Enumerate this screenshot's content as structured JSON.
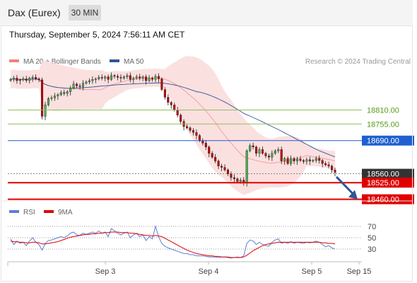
{
  "header": {
    "title": "Dax (Eurex)",
    "timeframe": "30 MIN"
  },
  "datetime": "Thursday, September 5, 2024 7:56:11 AM CET",
  "colors": {
    "bollinger": "#f08080",
    "ma50": "#2f5597",
    "resistance": "#8fbf5a",
    "pivot": "#1f5fd0",
    "support": "#e00000",
    "current_price": "#333333",
    "rsi": "#5b7fd6",
    "rsi_ma": "#e00000",
    "candle_up": "#4caf50",
    "candle_down": "#c00000",
    "arrow": "#2f5597"
  },
  "chart_data": [
    {
      "type": "candlestick",
      "title": "",
      "legend": [
        {
          "label": "MA 20 + Bollinger Bands",
          "color": "#f08080"
        },
        {
          "label": "MA 50",
          "color": "#2f5597"
        }
      ],
      "legend_position": "top-left",
      "attribution": "Research © 2024 Trading Central",
      "x_tick_labels": [
        "Sep 3",
        "Sep 4",
        "Sep 5",
        "Sep 15"
      ],
      "ylim": [
        18400,
        19000
      ],
      "close_series": [
        18930,
        18935,
        18925,
        18928,
        18932,
        18926,
        18935,
        18938,
        18932,
        18928,
        18785,
        18830,
        18855,
        18858,
        18865,
        18870,
        18878,
        18875,
        18882,
        18896,
        18912,
        18905,
        18902,
        18915,
        18920,
        18925,
        18930,
        18932,
        18938,
        18935,
        18940,
        18930,
        18945,
        18942,
        18938,
        18935,
        18940,
        18945,
        18930,
        18935,
        18940,
        18935,
        18940,
        18925,
        18935,
        18930,
        18942,
        18932,
        18890,
        18860,
        18840,
        18830,
        18810,
        18790,
        18765,
        18745,
        18740,
        18730,
        18722,
        18710,
        18690,
        18680,
        18665,
        18640,
        18625,
        18610,
        18590,
        18585,
        18575,
        18560,
        18545,
        18540,
        18530,
        18535,
        18525,
        18650,
        18670,
        18665,
        18640,
        18655,
        18640,
        18630,
        18625,
        18640,
        18650,
        18655,
        18610,
        18620,
        18600,
        18620,
        18610,
        18618,
        18612,
        18608,
        18615,
        18610,
        18612,
        18620,
        18612,
        18600,
        18595,
        18590,
        18575,
        18565
      ],
      "horizontal_levels": [
        {
          "value": 18810,
          "label": "18810.00",
          "kind": "resistance"
        },
        {
          "value": 18755,
          "label": "18755.00",
          "kind": "resistance"
        },
        {
          "value": 18690,
          "label": "18690.00",
          "kind": "pivot"
        },
        {
          "value": 18560,
          "label": "18560.00",
          "kind": "current"
        },
        {
          "value": 18525,
          "label": "18525.00",
          "kind": "support"
        },
        {
          "value": 18460,
          "label": "18460.00",
          "kind": "support"
        }
      ],
      "forecast_arrow": {
        "direction": "down",
        "target": 18460
      }
    },
    {
      "type": "line",
      "title": "",
      "legend": [
        {
          "label": "RSI",
          "color": "#5b7fd6"
        },
        {
          "label": "9MA",
          "color": "#e00000"
        }
      ],
      "y_ticks": [
        "70",
        "50",
        "30"
      ],
      "ylim": [
        10,
        90
      ],
      "series": [
        {
          "name": "RSI",
          "values": [
            48,
            38,
            44,
            40,
            42,
            36,
            44,
            50,
            42,
            38,
            28,
            40,
            45,
            46,
            48,
            50,
            52,
            50,
            53,
            58,
            60,
            55,
            54,
            58,
            56,
            58,
            60,
            58,
            62,
            58,
            60,
            52,
            66,
            62,
            58,
            55,
            58,
            60,
            50,
            55,
            58,
            52,
            55,
            45,
            52,
            48,
            70,
            52,
            40,
            35,
            32,
            30,
            28,
            26,
            24,
            22,
            22,
            20,
            20,
            18,
            18,
            18,
            17,
            16,
            16,
            16,
            15,
            16,
            16,
            15,
            14,
            15,
            16,
            15,
            18,
            40,
            46,
            44,
            38,
            42,
            38,
            36,
            35,
            42,
            46,
            48,
            40,
            42,
            40,
            43,
            40,
            42,
            41,
            40,
            42,
            41,
            42,
            44,
            42,
            38,
            34,
            36,
            32,
            30
          ]
        },
        {
          "name": "9MA",
          "values": [
            44,
            43,
            43,
            42,
            42,
            41,
            41,
            42,
            42,
            41,
            39,
            39,
            40,
            41,
            42,
            43,
            45,
            47,
            49,
            51,
            52,
            53,
            54,
            55,
            56,
            56,
            57,
            57,
            58,
            58,
            59,
            59,
            60,
            60,
            60,
            59,
            59,
            59,
            58,
            58,
            57,
            56,
            55,
            54,
            54,
            53,
            54,
            53,
            52,
            49,
            46,
            43,
            40,
            37,
            34,
            31,
            28,
            26,
            24,
            22,
            21,
            20,
            19,
            18,
            18,
            17,
            17,
            16,
            16,
            16,
            15,
            15,
            15,
            15,
            16,
            19,
            23,
            27,
            30,
            33,
            36,
            38,
            39,
            40,
            41,
            42,
            42,
            42,
            42,
            42,
            42,
            42,
            42,
            42,
            42,
            42,
            42,
            42,
            42,
            41,
            41,
            40,
            40,
            39
          ]
        }
      ]
    }
  ]
}
